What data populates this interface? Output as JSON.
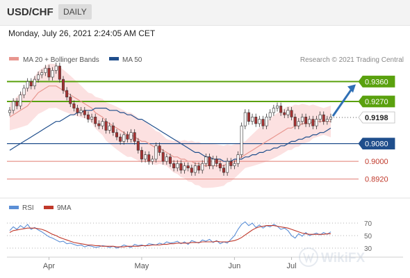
{
  "header": {
    "symbol": "USD/CHF",
    "period": "DAILY"
  },
  "datetime": "Monday, July 26, 2021 2:24:05 AM CET",
  "legend": {
    "ma20_bb": "MA 20 + Bollinger Bands",
    "ma50": "MA 50"
  },
  "credit": "Research © 2021 Trading Central",
  "watermark": "WikiFX",
  "colors": {
    "ma20": "#e8968f",
    "ma50": "#1f4e8c",
    "resistance": "#5aa10e",
    "support": "#1f4e8c",
    "support_red": "#e07b72",
    "rsi": "#5b8fd6",
    "rsi_ma": "#c0392b",
    "up": "#ffffff",
    "down": "#a83232",
    "band": "#f9c9c9"
  },
  "chart_data": [
    {
      "type": "candlestick",
      "title": "USD/CHF",
      "x_ticks": [
        "Apr",
        "May",
        "Jun",
        "Jul"
      ],
      "ylim": [
        0.885,
        0.943
      ],
      "last_price": 0.9198,
      "levels": [
        {
          "value": 0.936,
          "label": "0.9360",
          "kind": "resistance"
        },
        {
          "value": 0.927,
          "label": "0.9270",
          "kind": "resistance"
        },
        {
          "value": 0.9198,
          "label": "0.9198",
          "kind": "last"
        },
        {
          "value": 0.908,
          "label": "0.9080",
          "kind": "support"
        },
        {
          "value": 0.9,
          "label": "0.9000",
          "kind": "support"
        },
        {
          "value": 0.892,
          "label": "0.8920",
          "kind": "support"
        }
      ],
      "arrow_target": 0.936,
      "closes": [
        0.923,
        0.927,
        0.925,
        0.93,
        0.933,
        0.936,
        0.934,
        0.937,
        0.939,
        0.94,
        0.942,
        0.938,
        0.941,
        0.943,
        0.937,
        0.932,
        0.929,
        0.926,
        0.924,
        0.922,
        0.923,
        0.921,
        0.919,
        0.92,
        0.917,
        0.916,
        0.918,
        0.914,
        0.916,
        0.913,
        0.911,
        0.909,
        0.912,
        0.91,
        0.913,
        0.909,
        0.905,
        0.901,
        0.903,
        0.9,
        0.901,
        0.907,
        0.904,
        0.9,
        0.902,
        0.899,
        0.897,
        0.899,
        0.896,
        0.898,
        0.897,
        0.895,
        0.898,
        0.896,
        0.899,
        0.902,
        0.898,
        0.901,
        0.899,
        0.897,
        0.895,
        0.9,
        0.898,
        0.899,
        0.903,
        0.916,
        0.922,
        0.918,
        0.92,
        0.917,
        0.919,
        0.916,
        0.92,
        0.922,
        0.924,
        0.925,
        0.922,
        0.921,
        0.923,
        0.92,
        0.916,
        0.918,
        0.92,
        0.917,
        0.919,
        0.916,
        0.919,
        0.921,
        0.918,
        0.919,
        0.92
      ],
      "ma20": [
        0.92,
        0.921,
        0.922,
        0.923,
        0.924,
        0.925,
        0.927,
        0.929,
        0.931,
        0.932,
        0.933,
        0.934,
        0.934,
        0.934,
        0.933,
        0.932,
        0.931,
        0.93,
        0.929,
        0.928,
        0.927,
        0.926,
        0.925,
        0.924,
        0.922,
        0.921,
        0.92,
        0.918,
        0.917,
        0.916,
        0.915,
        0.914,
        0.913,
        0.912,
        0.912,
        0.911,
        0.91,
        0.909,
        0.909,
        0.908,
        0.907,
        0.906,
        0.906,
        0.905,
        0.904,
        0.903,
        0.902,
        0.902,
        0.901,
        0.901,
        0.9,
        0.9,
        0.899,
        0.899,
        0.898,
        0.898,
        0.898,
        0.898,
        0.898,
        0.898,
        0.898,
        0.899,
        0.899,
        0.9,
        0.901,
        0.902,
        0.903,
        0.904,
        0.905,
        0.906,
        0.907,
        0.908,
        0.909,
        0.91,
        0.911,
        0.912,
        0.913,
        0.914,
        0.915,
        0.915,
        0.916,
        0.916,
        0.917,
        0.917,
        0.917,
        0.918,
        0.918,
        0.918,
        0.918,
        0.918,
        0.918
      ],
      "ma50": [
        0.905,
        0.906,
        0.907,
        0.908,
        0.909,
        0.91,
        0.911,
        0.912,
        0.913,
        0.914,
        0.915,
        0.916,
        0.917,
        0.918,
        0.918,
        0.919,
        0.92,
        0.921,
        0.921,
        0.922,
        0.922,
        0.923,
        0.923,
        0.923,
        0.924,
        0.924,
        0.924,
        0.924,
        0.923,
        0.923,
        0.923,
        0.922,
        0.922,
        0.921,
        0.921,
        0.92,
        0.919,
        0.919,
        0.918,
        0.917,
        0.916,
        0.915,
        0.914,
        0.913,
        0.912,
        0.911,
        0.91,
        0.909,
        0.908,
        0.907,
        0.906,
        0.905,
        0.904,
        0.904,
        0.903,
        0.902,
        0.902,
        0.901,
        0.901,
        0.901,
        0.9,
        0.9,
        0.9,
        0.901,
        0.901,
        0.901,
        0.902,
        0.902,
        0.903,
        0.903,
        0.904,
        0.904,
        0.905,
        0.905,
        0.906,
        0.906,
        0.907,
        0.907,
        0.908,
        0.909,
        0.909,
        0.91,
        0.91,
        0.911,
        0.911,
        0.912,
        0.912,
        0.913,
        0.913,
        0.914,
        0.915
      ]
    },
    {
      "type": "line",
      "title": "RSI",
      "legend": [
        "RSI",
        "9MA"
      ],
      "ylim": [
        20,
        80
      ],
      "y_ticks": [
        {
          "value": 70,
          "label": "70"
        },
        {
          "value": 50,
          "label": "50"
        },
        {
          "value": 30,
          "label": "30"
        }
      ],
      "series": [
        {
          "name": "RSI",
          "values": [
            58,
            64,
            60,
            66,
            62,
            68,
            60,
            63,
            59,
            56,
            52,
            48,
            46,
            43,
            40,
            41,
            37,
            38,
            36,
            34,
            35,
            32,
            34,
            33,
            31,
            32,
            34,
            33,
            31,
            33,
            30,
            32,
            35,
            33,
            31,
            36,
            34,
            35,
            33,
            37,
            36,
            35,
            38,
            36,
            40,
            38,
            39,
            41,
            37,
            40,
            36,
            42,
            40,
            38,
            43,
            41,
            44,
            39,
            42,
            37,
            40,
            38,
            44,
            50,
            60,
            68,
            72,
            66,
            70,
            63,
            67,
            62,
            66,
            64,
            68,
            65,
            60,
            62,
            58,
            50,
            46,
            53,
            49,
            55,
            50,
            52,
            54,
            51,
            55,
            52,
            56
          ]
        },
        {
          "name": "9MA",
          "values": [
            55,
            58,
            59,
            60,
            61,
            62,
            62,
            62,
            61,
            60,
            58,
            55,
            52,
            50,
            47,
            45,
            43,
            41,
            39,
            38,
            37,
            36,
            35,
            35,
            34,
            34,
            33,
            33,
            33,
            33,
            32,
            32,
            32,
            33,
            33,
            33,
            33,
            34,
            34,
            34,
            35,
            35,
            35,
            36,
            36,
            37,
            37,
            38,
            38,
            38,
            38,
            39,
            39,
            39,
            40,
            40,
            40,
            40,
            41,
            40,
            40,
            40,
            41,
            42,
            44,
            47,
            51,
            55,
            59,
            62,
            64,
            65,
            66,
            66,
            66,
            65,
            64,
            63,
            62,
            60,
            58,
            56,
            54,
            53,
            52,
            52,
            52,
            52,
            52,
            53,
            53
          ]
        }
      ]
    }
  ]
}
